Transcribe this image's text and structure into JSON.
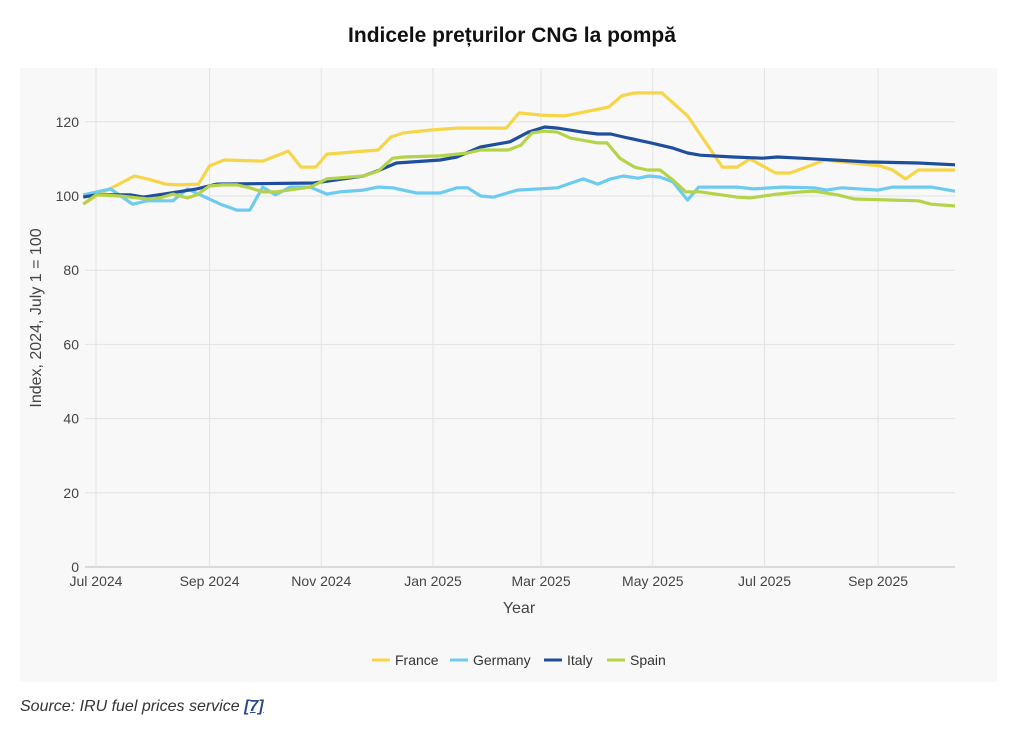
{
  "chart_data": {
    "type": "line",
    "title": "Indicele prețurilor CNG la pompă",
    "xlabel": "Year",
    "ylabel": "Index, 2024, July 1 = 100",
    "xlim": [
      "2024-06-25",
      "2025-10-13"
    ],
    "ylim": [
      0,
      134.5
    ],
    "yticks": [
      0,
      20,
      40,
      60,
      80,
      100,
      120
    ],
    "xticks": [
      {
        "date": "2024-07-01",
        "label": "Jul 2024"
      },
      {
        "date": "2024-09-01",
        "label": "Sep 2024"
      },
      {
        "date": "2024-11-01",
        "label": "Nov 2024"
      },
      {
        "date": "2025-01-01",
        "label": "Jan 2025"
      },
      {
        "date": "2025-03-01",
        "label": "Mar 2025"
      },
      {
        "date": "2025-05-01",
        "label": "May 2025"
      },
      {
        "date": "2025-07-01",
        "label": "Jul 2025"
      },
      {
        "date": "2025-09-01",
        "label": "Sep 2025"
      }
    ],
    "grid": true,
    "legend_position": "bottom",
    "series": [
      {
        "name": "France",
        "color": "#f7d548",
        "points": [
          [
            "2024-06-25",
            98.1
          ],
          [
            "2024-07-01",
            100
          ],
          [
            "2024-07-22",
            105.4
          ],
          [
            "2024-07-29",
            104.6
          ],
          [
            "2024-08-08",
            103.2
          ],
          [
            "2024-08-15",
            103
          ],
          [
            "2024-08-26",
            103.2
          ],
          [
            "2024-09-01",
            108.1
          ],
          [
            "2024-09-09",
            109.7
          ],
          [
            "2024-09-30",
            109.4
          ],
          [
            "2024-10-14",
            112.1
          ],
          [
            "2024-10-21",
            107.8
          ],
          [
            "2024-10-29",
            107.8
          ],
          [
            "2024-11-04",
            111.3
          ],
          [
            "2024-12-02",
            112.4
          ],
          [
            "2024-12-09",
            115.9
          ],
          [
            "2024-12-16",
            117
          ],
          [
            "2024-12-31",
            117.8
          ],
          [
            "2025-01-14",
            118.3
          ],
          [
            "2025-02-10",
            118.3
          ],
          [
            "2025-02-17",
            122.4
          ],
          [
            "2025-03-01",
            121.8
          ],
          [
            "2025-03-14",
            121.6
          ],
          [
            "2025-04-07",
            124
          ],
          [
            "2025-04-14",
            127
          ],
          [
            "2025-04-21",
            127.8
          ],
          [
            "2025-05-06",
            127.8
          ],
          [
            "2025-05-20",
            121.6
          ],
          [
            "2025-06-08",
            107.8
          ],
          [
            "2025-06-16",
            107.8
          ],
          [
            "2025-06-23",
            110
          ],
          [
            "2025-07-07",
            106.2
          ],
          [
            "2025-07-15",
            106.2
          ],
          [
            "2025-08-03",
            109.7
          ],
          [
            "2025-09-02",
            108.1
          ],
          [
            "2025-09-09",
            107
          ],
          [
            "2025-09-16",
            104.6
          ],
          [
            "2025-09-23",
            107
          ],
          [
            "2025-10-13",
            107
          ]
        ]
      },
      {
        "name": "Germany",
        "color": "#6ecbf0",
        "points": [
          [
            "2024-06-24",
            100.3
          ],
          [
            "2024-07-09",
            101.9
          ],
          [
            "2024-07-21",
            97.8
          ],
          [
            "2024-07-29",
            98.7
          ],
          [
            "2024-08-12",
            98.7
          ],
          [
            "2024-08-20",
            101.9
          ],
          [
            "2024-08-27",
            100.3
          ],
          [
            "2024-09-07",
            97.8
          ],
          [
            "2024-09-16",
            96.2
          ],
          [
            "2024-09-23",
            96.2
          ],
          [
            "2024-09-30",
            102.4
          ],
          [
            "2024-10-07",
            100.3
          ],
          [
            "2024-10-15",
            102.4
          ],
          [
            "2024-10-26",
            102.4
          ],
          [
            "2024-11-04",
            100.5
          ],
          [
            "2024-11-11",
            101.1
          ],
          [
            "2024-11-24",
            101.6
          ],
          [
            "2024-12-02",
            102.4
          ],
          [
            "2024-12-10",
            102.2
          ],
          [
            "2024-12-23",
            100.8
          ],
          [
            "2025-01-05",
            100.8
          ],
          [
            "2025-01-14",
            102.2
          ],
          [
            "2025-01-20",
            102.2
          ],
          [
            "2025-01-27",
            100
          ],
          [
            "2025-02-03",
            99.7
          ],
          [
            "2025-02-16",
            101.6
          ],
          [
            "2025-03-10",
            102.2
          ],
          [
            "2025-03-24",
            104.6
          ],
          [
            "2025-04-01",
            103.2
          ],
          [
            "2025-04-08",
            104.6
          ],
          [
            "2025-04-15",
            105.4
          ],
          [
            "2025-04-23",
            104.8
          ],
          [
            "2025-04-29",
            105.4
          ],
          [
            "2025-05-05",
            105.1
          ],
          [
            "2025-05-12",
            103.8
          ],
          [
            "2025-05-20",
            98.9
          ],
          [
            "2025-05-26",
            102.4
          ],
          [
            "2025-06-16",
            102.4
          ],
          [
            "2025-06-25",
            101.9
          ],
          [
            "2025-07-11",
            102.4
          ],
          [
            "2025-07-28",
            102.2
          ],
          [
            "2025-08-04",
            101.6
          ],
          [
            "2025-08-12",
            102.2
          ],
          [
            "2025-09-01",
            101.6
          ],
          [
            "2025-09-09",
            102.4
          ],
          [
            "2025-09-30",
            102.4
          ],
          [
            "2025-10-13",
            101.3
          ]
        ]
      },
      {
        "name": "Italy",
        "color": "#1f4e9c",
        "points": [
          [
            "2024-06-24",
            99.7
          ],
          [
            "2024-07-01",
            100.3
          ],
          [
            "2024-07-20",
            100.3
          ],
          [
            "2024-07-27",
            99.7
          ],
          [
            "2024-08-07",
            100.5
          ],
          [
            "2024-08-25",
            101.9
          ],
          [
            "2024-09-05",
            103.2
          ],
          [
            "2024-10-28",
            103.5
          ],
          [
            "2024-11-24",
            105.4
          ],
          [
            "2024-12-03",
            107
          ],
          [
            "2024-12-12",
            108.9
          ],
          [
            "2025-01-05",
            109.7
          ],
          [
            "2025-01-14",
            110.5
          ],
          [
            "2025-01-27",
            113.2
          ],
          [
            "2025-02-05",
            114
          ],
          [
            "2025-02-12",
            114.6
          ],
          [
            "2025-02-22",
            117.2
          ],
          [
            "2025-03-03",
            118.6
          ],
          [
            "2025-03-10",
            118.3
          ],
          [
            "2025-03-24",
            117.2
          ],
          [
            "2025-04-01",
            116.7
          ],
          [
            "2025-04-08",
            116.7
          ],
          [
            "2025-04-15",
            115.9
          ],
          [
            "2025-04-30",
            114.3
          ],
          [
            "2025-05-07",
            113.5
          ],
          [
            "2025-05-12",
            112.9
          ],
          [
            "2025-05-20",
            111.6
          ],
          [
            "2025-05-27",
            111
          ],
          [
            "2025-06-14",
            110.5
          ],
          [
            "2025-06-30",
            110.2
          ],
          [
            "2025-07-08",
            110.5
          ],
          [
            "2025-07-21",
            110.2
          ],
          [
            "2025-08-08",
            109.7
          ],
          [
            "2025-08-26",
            109.2
          ],
          [
            "2025-09-23",
            108.9
          ],
          [
            "2025-10-13",
            108.4
          ]
        ]
      },
      {
        "name": "Spain",
        "color": "#b5d34a",
        "points": [
          [
            "2024-06-24",
            97.8
          ],
          [
            "2024-07-01",
            100.3
          ],
          [
            "2024-07-14",
            100
          ],
          [
            "2024-07-29",
            99.2
          ],
          [
            "2024-08-05",
            99.5
          ],
          [
            "2024-08-12",
            100.5
          ],
          [
            "2024-08-20",
            99.5
          ],
          [
            "2024-08-25",
            100.3
          ],
          [
            "2024-09-01",
            102.7
          ],
          [
            "2024-09-08",
            103
          ],
          [
            "2024-09-16",
            103
          ],
          [
            "2024-09-23",
            102.2
          ],
          [
            "2024-09-30",
            101.1
          ],
          [
            "2024-10-07",
            101.1
          ],
          [
            "2024-10-26",
            102.4
          ],
          [
            "2024-11-04",
            104.6
          ],
          [
            "2024-11-24",
            105.4
          ],
          [
            "2024-12-02",
            106.7
          ],
          [
            "2024-12-10",
            110.2
          ],
          [
            "2024-12-16",
            110.5
          ],
          [
            "2025-01-05",
            110.8
          ],
          [
            "2025-01-20",
            111.6
          ],
          [
            "2025-01-27",
            112.4
          ],
          [
            "2025-02-11",
            112.4
          ],
          [
            "2025-02-18",
            113.7
          ],
          [
            "2025-02-24",
            117
          ],
          [
            "2025-03-03",
            117.5
          ],
          [
            "2025-03-10",
            117.2
          ],
          [
            "2025-03-17",
            115.6
          ],
          [
            "2025-04-01",
            114.3
          ],
          [
            "2025-04-06",
            114.3
          ],
          [
            "2025-04-13",
            110.2
          ],
          [
            "2025-04-21",
            107.8
          ],
          [
            "2025-04-28",
            107
          ],
          [
            "2025-05-05",
            107
          ],
          [
            "2025-05-12",
            104.3
          ],
          [
            "2025-05-19",
            101.1
          ],
          [
            "2025-05-27",
            101.1
          ],
          [
            "2025-06-16",
            99.7
          ],
          [
            "2025-06-23",
            99.5
          ],
          [
            "2025-07-08",
            100.5
          ],
          [
            "2025-07-21",
            101.1
          ],
          [
            "2025-07-28",
            101.3
          ],
          [
            "2025-08-10",
            100.3
          ],
          [
            "2025-08-19",
            99.2
          ],
          [
            "2025-09-23",
            98.7
          ],
          [
            "2025-09-30",
            97.8
          ],
          [
            "2025-10-13",
            97.3
          ]
        ]
      }
    ]
  },
  "source": {
    "text": "Source: IRU fuel prices service ",
    "ref": "[7]"
  }
}
